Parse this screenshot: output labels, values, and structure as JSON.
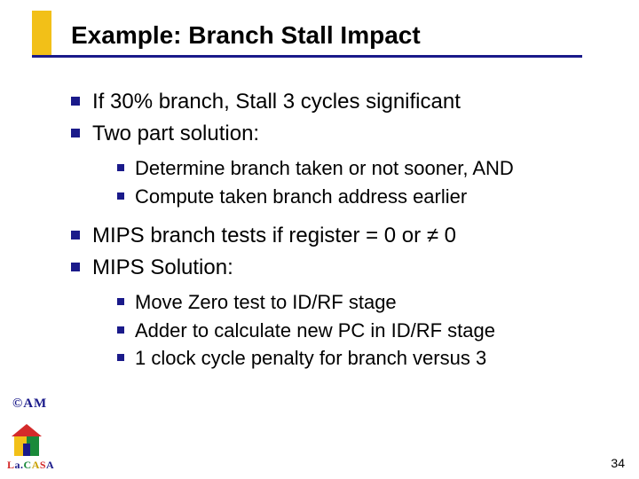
{
  "title": "Example: Branch Stall Impact",
  "bullets": {
    "a1": "If 30% branch, Stall 3 cycles significant",
    "a2": "Two part solution:",
    "b1": "Determine branch taken or not sooner, AND",
    "b2": "Compute taken branch address earlier",
    "a3": "MIPS branch tests if register = 0 or ≠ 0",
    "a4": "MIPS Solution:",
    "c1": "Move Zero test to ID/RF stage",
    "c2": "Adder to calculate new PC in ID/RF stage",
    "c3": "1 clock cycle penalty for branch versus 3"
  },
  "footer": {
    "am": "©AM",
    "lacasa": {
      "l": "L",
      "a1": "a.",
      "c": "C",
      "a2": "A",
      "s": "S",
      "a3": "A"
    },
    "page": "34"
  },
  "colors": {
    "accent_blue": "#1a1a8a",
    "accent_yellow": "#f2c018",
    "accent_red": "#d42a2a",
    "accent_green": "#1a8a3a",
    "text": "#000000",
    "background": "#ffffff"
  }
}
